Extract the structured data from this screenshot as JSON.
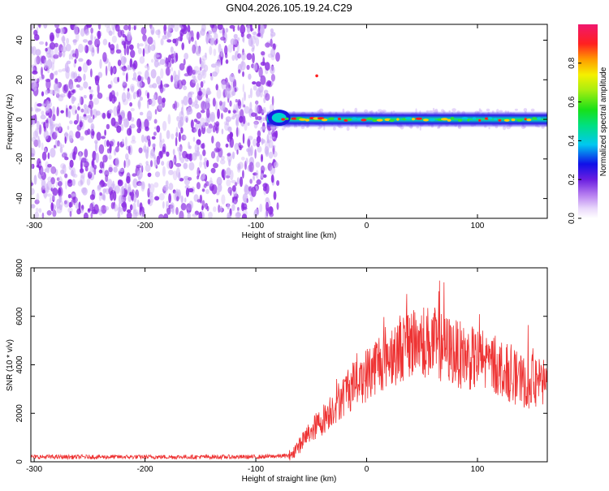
{
  "title": "GN04.2026.105.19.24.C29",
  "colors": {
    "snr_line": "#ee3333",
    "noise_dark": "#8a2be2",
    "noise_light": "#cdb0f5",
    "frame": "#000000"
  },
  "chart_data": [
    {
      "type": "heatmap",
      "xlabel": "Height of straight line (km)",
      "ylabel": "Frequency (Hz)",
      "xlim": [
        -303,
        163
      ],
      "ylim": [
        -50,
        48
      ],
      "xticks": [
        -300,
        -200,
        -100,
        0,
        100
      ],
      "xtick_labels": [
        "-300",
        "-200",
        "-100",
        "0",
        "100"
      ],
      "yticks": [
        -40,
        -20,
        0,
        20,
        40
      ],
      "ytick_labels": [
        "-40",
        "-20",
        "0",
        "20",
        "40"
      ],
      "noise_region_x": [
        -303,
        -83
      ],
      "signal_trace_freq_hz": 0,
      "signal_region_x": [
        -90,
        163
      ],
      "colorbar": {
        "label": "Normalized spectral amplitude",
        "range": [
          0,
          1
        ],
        "ticks": [
          0,
          0.2,
          0.4,
          0.6,
          0.8
        ],
        "tick_labels": [
          "0.0",
          "0.2",
          "0.4",
          "0.6",
          "0.8"
        ]
      }
    },
    {
      "type": "line",
      "xlabel": "Height of straight line (km)",
      "ylabel": "SNR (10 * v/v)",
      "xlim": [
        -303,
        163
      ],
      "ylim": [
        0,
        8000
      ],
      "xticks": [
        -300,
        -200,
        -100,
        0,
        100
      ],
      "xtick_labels": [
        "-300",
        "-200",
        "-100",
        "0",
        "100"
      ],
      "yticks": [
        0,
        2000,
        4000,
        6000,
        8000
      ],
      "ytick_labels": [
        "0",
        "2000",
        "4000",
        "6000",
        "8000"
      ],
      "series": [
        {
          "name": "SNR",
          "x": [
            -303,
            -250,
            -200,
            -150,
            -100,
            -70,
            -60,
            -50,
            -40,
            -30,
            -20,
            -10,
            0,
            10,
            20,
            30,
            40,
            50,
            60,
            70,
            80,
            90,
            100,
            110,
            120,
            130,
            140,
            150,
            163
          ],
          "values": [
            200,
            200,
            200,
            200,
            200,
            250,
            700,
            1300,
            1700,
            2300,
            2800,
            3300,
            3600,
            4100,
            4400,
            4700,
            4900,
            5000,
            4900,
            4700,
            4500,
            4300,
            4200,
            4100,
            3900,
            3600,
            3300,
            3200,
            3200
          ]
        }
      ]
    }
  ]
}
